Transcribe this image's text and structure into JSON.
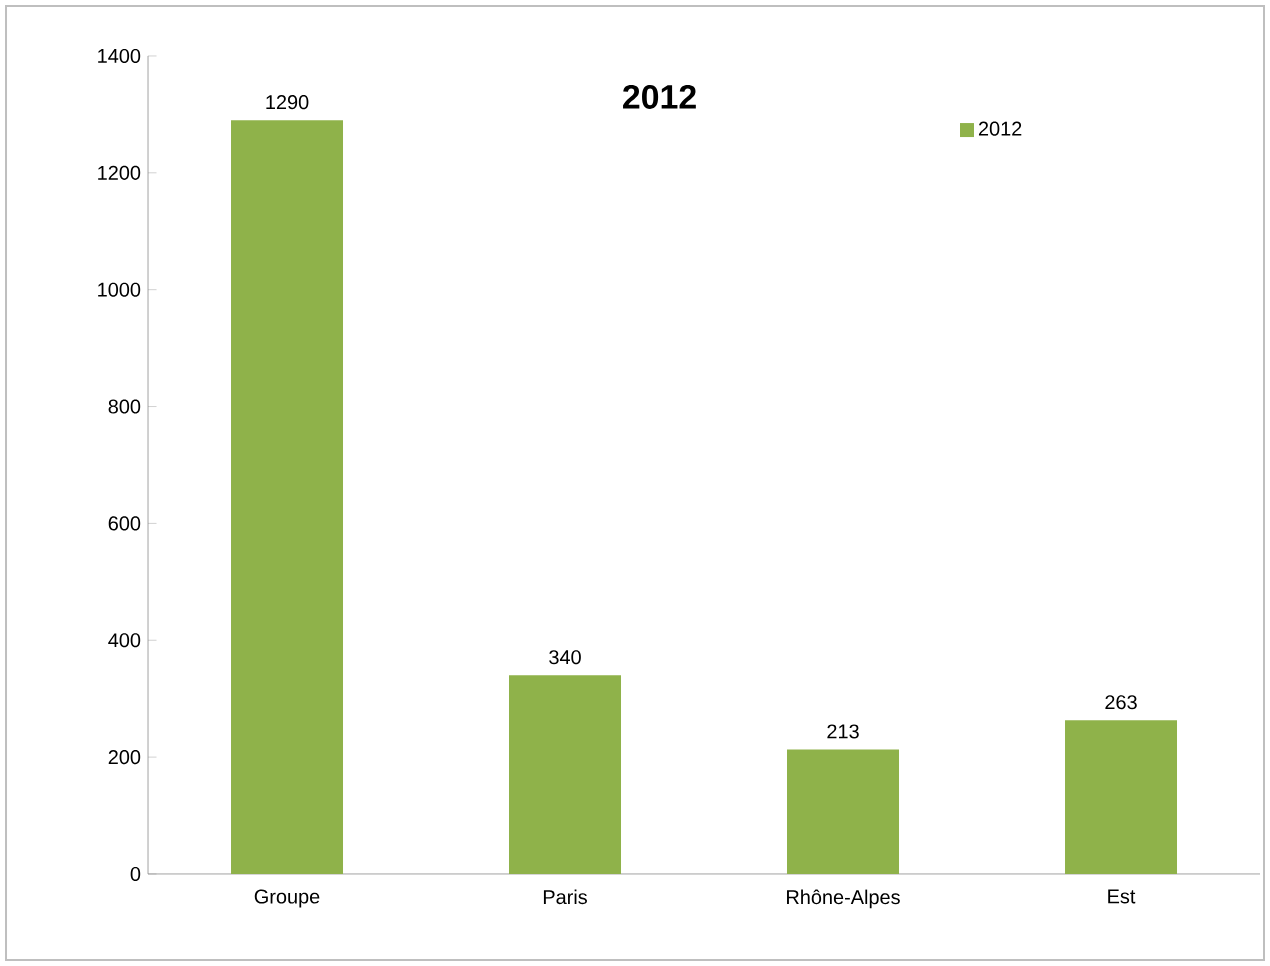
{
  "chart_data": {
    "type": "bar",
    "title": "2012",
    "categories": [
      "Groupe",
      "Paris",
      "Rhône-Alpes",
      "Est"
    ],
    "series": [
      {
        "name": "2012",
        "color": "#8fb24a",
        "values": [
          1290,
          340,
          213,
          263
        ]
      }
    ],
    "ylim": [
      0,
      1400
    ],
    "yticks": [
      0,
      200,
      400,
      600,
      800,
      1000,
      1200,
      1400
    ],
    "data_labels": true,
    "legend": "top right",
    "grid": false
  }
}
